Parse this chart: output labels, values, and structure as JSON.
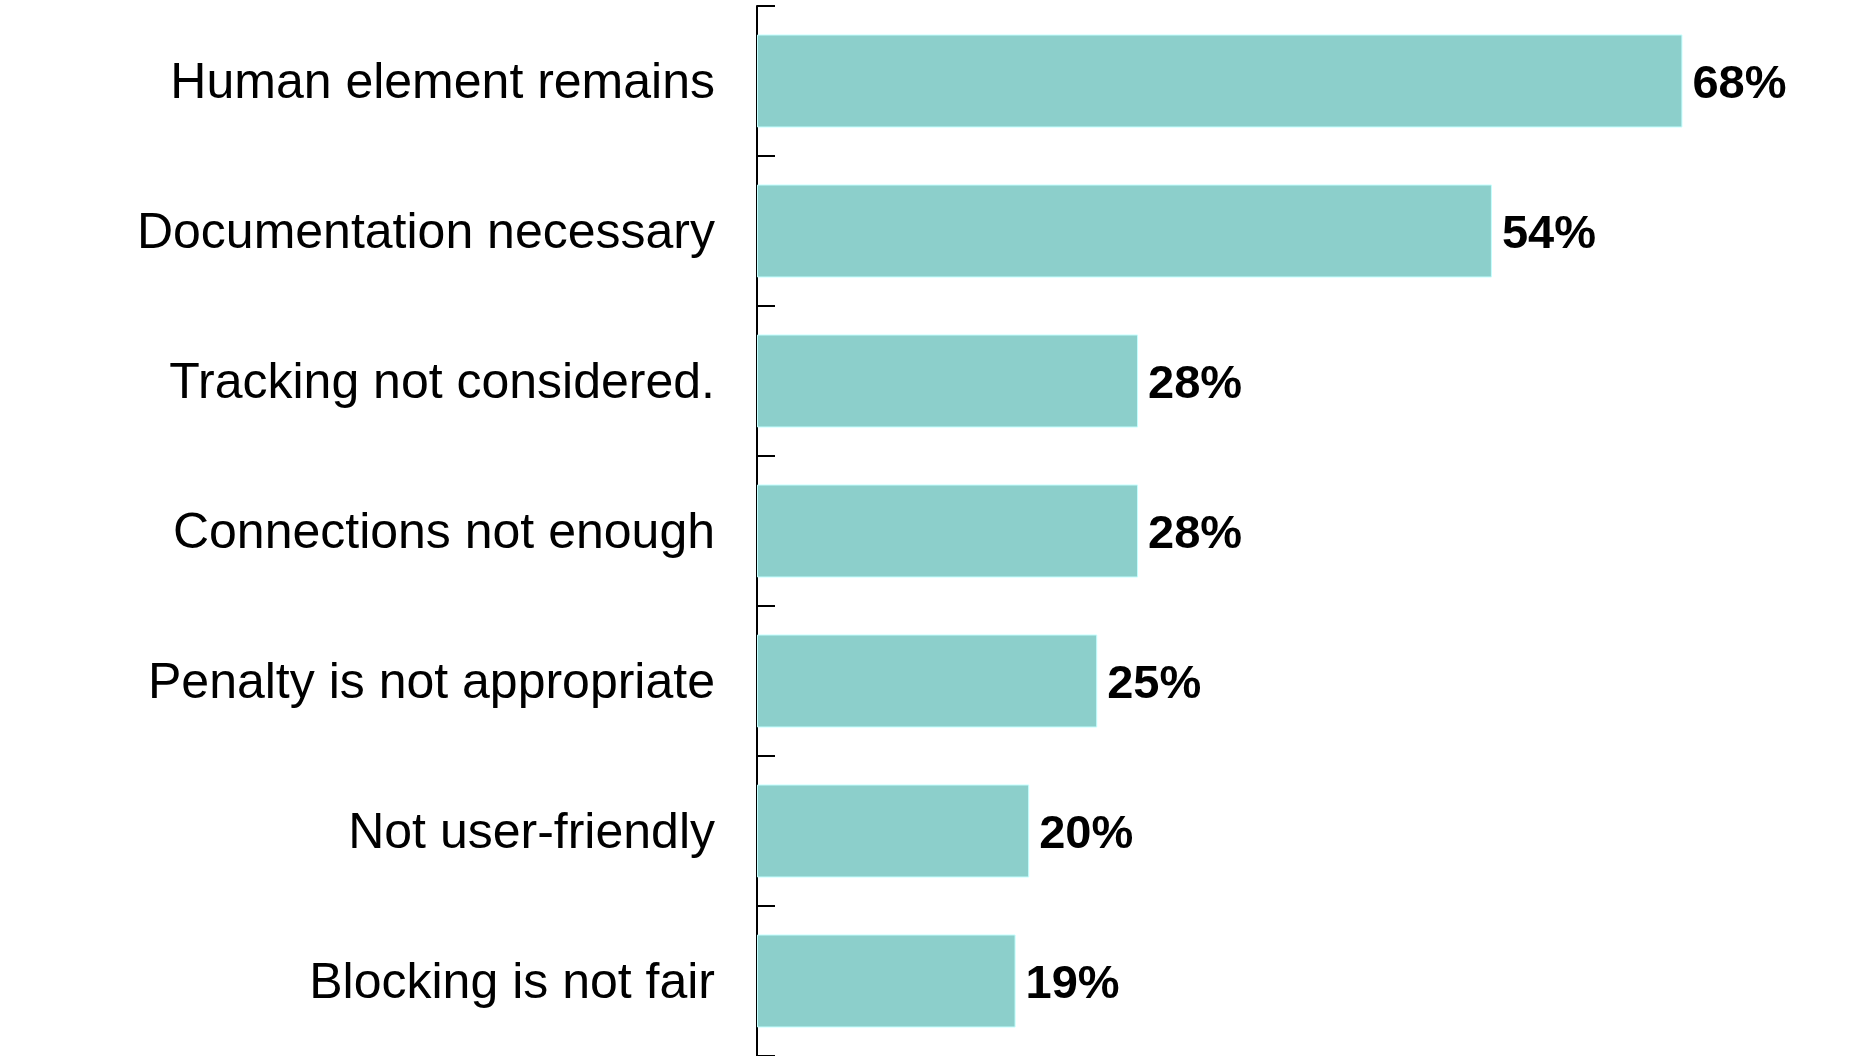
{
  "chart_data": {
    "type": "bar",
    "orientation": "horizontal",
    "categories": [
      "Human element remains",
      "Documentation necessary",
      "Tracking not considered.",
      "Connections not enough",
      "Penalty is not appropriate",
      "Not user-friendly",
      "Blocking is not fair"
    ],
    "values": [
      68,
      54,
      28,
      28,
      25,
      20,
      19
    ],
    "value_labels": [
      "68%",
      "54%",
      "28%",
      "28%",
      "25%",
      "20%",
      "19%"
    ],
    "color": "#8ccfcb",
    "tick_labels": "y"
  }
}
